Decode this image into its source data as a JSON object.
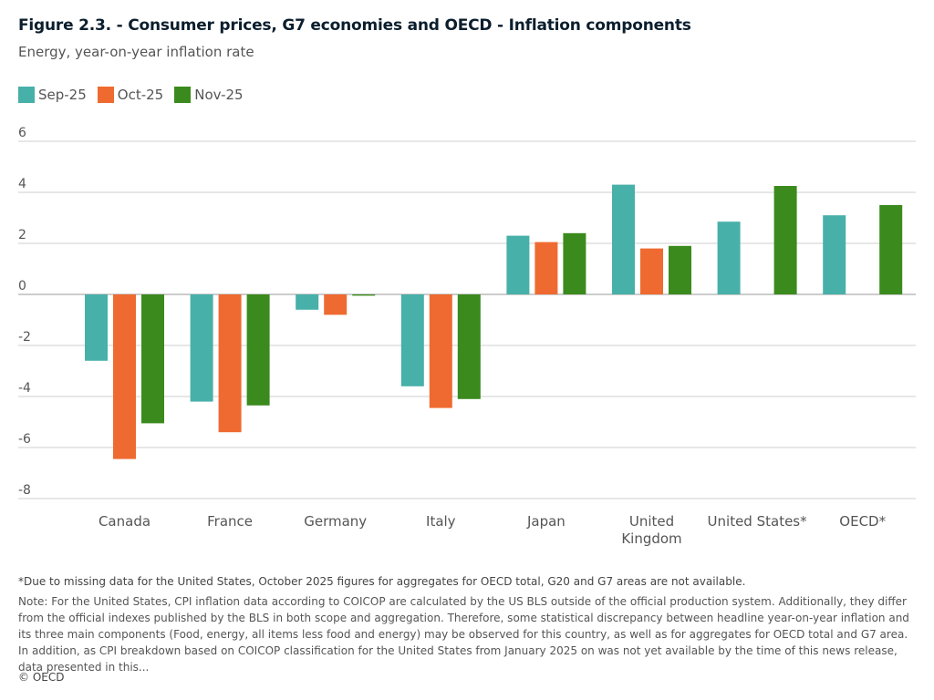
{
  "header": {
    "title": "Figure 2.3. - Consumer prices, G7 economies and OECD - Inflation components",
    "subtitle": "Energy, year-on-year inflation rate"
  },
  "legend": [
    {
      "label": "Sep-25",
      "color": "#47b0a9"
    },
    {
      "label": "Oct-25",
      "color": "#ef6a30"
    },
    {
      "label": "Nov-25",
      "color": "#3b8a1d"
    }
  ],
  "chart_data": {
    "type": "bar",
    "title": "Figure 2.3. - Consumer prices, G7 economies and OECD - Inflation components",
    "subtitle": "Energy, year-on-year inflation rate",
    "categories": [
      "Canada",
      "France",
      "Germany",
      "Italy",
      "Japan",
      "United Kingdom",
      "United States*",
      "OECD*"
    ],
    "category_lines": [
      [
        "Canada"
      ],
      [
        "France"
      ],
      [
        "Germany"
      ],
      [
        "Italy"
      ],
      [
        "Japan"
      ],
      [
        "United",
        "Kingdom"
      ],
      [
        "United States*"
      ],
      [
        "OECD*"
      ]
    ],
    "series": [
      {
        "name": "Sep-25",
        "color": "#47b0a9",
        "values": [
          -2.6,
          -4.2,
          -0.6,
          -3.6,
          2.3,
          4.3,
          2.85,
          3.1
        ]
      },
      {
        "name": "Oct-25",
        "color": "#ef6a30",
        "values": [
          -6.45,
          -5.4,
          -0.8,
          -4.45,
          2.05,
          1.8,
          null,
          null
        ]
      },
      {
        "name": "Nov-25",
        "color": "#3b8a1d",
        "values": [
          -5.05,
          -4.35,
          -0.05,
          -4.1,
          2.4,
          1.9,
          4.25,
          3.5
        ]
      }
    ],
    "yticks": [
      6,
      4,
      2,
      0,
      -2,
      -4,
      -6,
      -8
    ],
    "ylim": [
      -8,
      6
    ],
    "xlabel": "",
    "ylabel": "",
    "grid": true,
    "legend_position": "top-left"
  },
  "footnote": "*Due to missing data for the United States, October 2025 figures for aggregates for OECD total, G20 and G7 areas are not available.",
  "note": "Note: For the United States, CPI inflation data according to COICOP are calculated by the US BLS outside of the official production system. Additionally, they differ from the official indexes published by the BLS in both scope and aggregation. Therefore, some statistical discrepancy between headline year-on-year inflation and its three main components (Food, energy, all items less food and energy) may be observed for this country, as well as for aggregates for OECD total and G7 area. In addition, as CPI breakdown based on COICOP classification for the United States from January 2025 on was not yet available by the time of this news release, data presented in this...",
  "copyright": "© OECD"
}
